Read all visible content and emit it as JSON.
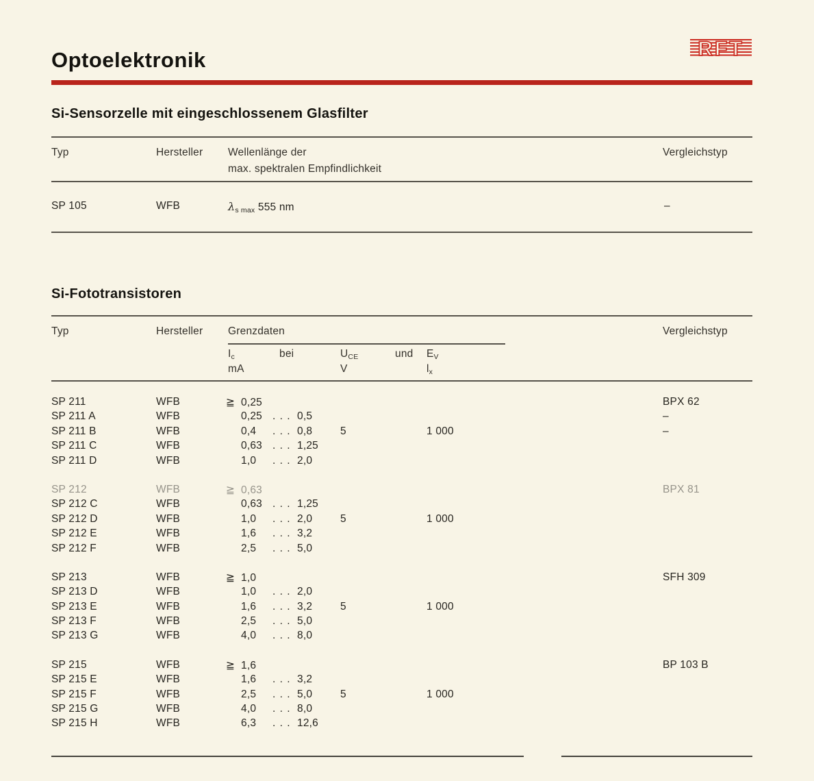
{
  "page": {
    "title": "Optoelektronik",
    "logo_text": "RFT",
    "accent_red": "#b9241b",
    "paper_color": "#f8f4e6",
    "ink_color": "#26241f"
  },
  "sensor_section": {
    "heading": "Si-Sensorzelle mit eingeschlossenem Glasfilter",
    "columns": {
      "typ": "Typ",
      "hersteller": "Hersteller",
      "wellenlaenge_line1": "Wellenlänge der",
      "wellenlaenge_line2": "max. spektralen Empfindlichkeit",
      "vergleichstyp": "Vergleichstyp"
    },
    "row": {
      "typ": "SP 105",
      "hersteller": "WFB",
      "lambda": "λ",
      "lambda_sub": "s max",
      "wert": "555 nm",
      "vergleichstyp": "–"
    }
  },
  "foto_section": {
    "heading": "Si-Fototransistoren",
    "columns": {
      "typ": "Typ",
      "hersteller": "Hersteller",
      "grenzdaten": "Grenzdaten",
      "vergleichstyp": "Vergleichstyp",
      "ic_main": "I",
      "ic_sub": "c",
      "ic_unit": "mA",
      "bei": "bei",
      "uce_main": "U",
      "uce_sub": "CE",
      "uce_unit": "V",
      "und": "und",
      "ev_main": "E",
      "ev_sub": "V",
      "ev_unit_main": "l",
      "ev_unit_sub": "x"
    },
    "dots": ". . .",
    "groups": [
      {
        "rows": [
          {
            "typ": "SP 211",
            "hersteller": "WFB",
            "ge": "≧",
            "min": "0,25",
            "max": "",
            "uce": "",
            "ev": "",
            "vergleichstyp": "BPX 62",
            "faded": false
          },
          {
            "typ": "SP 211 A",
            "hersteller": "WFB",
            "ge": "",
            "min": "0,25",
            "max": "0,5",
            "uce": "",
            "ev": "",
            "vergleichstyp": "–",
            "faded": false
          },
          {
            "typ": "SP 211 B",
            "hersteller": "WFB",
            "ge": "",
            "min": "0,4",
            "max": "0,8",
            "uce": "5",
            "ev": "1 000",
            "vergleichstyp": "–",
            "faded": false
          },
          {
            "typ": "SP 211 C",
            "hersteller": "WFB",
            "ge": "",
            "min": "0,63",
            "max": "1,25",
            "uce": "",
            "ev": "",
            "vergleichstyp": "",
            "faded": false
          },
          {
            "typ": "SP 211 D",
            "hersteller": "WFB",
            "ge": "",
            "min": "1,0",
            "max": "2,0",
            "uce": "",
            "ev": "",
            "vergleichstyp": "",
            "faded": false
          }
        ]
      },
      {
        "rows": [
          {
            "typ": "SP 212",
            "hersteller": "WFB",
            "ge": "≧",
            "min": "0,63",
            "max": "",
            "uce": "",
            "ev": "",
            "vergleichstyp": "BPX 81",
            "faded": true
          },
          {
            "typ": "SP 212 C",
            "hersteller": "WFB",
            "ge": "",
            "min": "0,63",
            "max": "1,25",
            "uce": "",
            "ev": "",
            "vergleichstyp": "",
            "faded": false
          },
          {
            "typ": "SP 212 D",
            "hersteller": "WFB",
            "ge": "",
            "min": "1,0",
            "max": "2,0",
            "uce": "5",
            "ev": "1 000",
            "vergleichstyp": "",
            "faded": false
          },
          {
            "typ": "SP 212 E",
            "hersteller": "WFB",
            "ge": "",
            "min": "1,6",
            "max": "3,2",
            "uce": "",
            "ev": "",
            "vergleichstyp": "",
            "faded": false
          },
          {
            "typ": "SP 212 F",
            "hersteller": "WFB",
            "ge": "",
            "min": "2,5",
            "max": "5,0",
            "uce": "",
            "ev": "",
            "vergleichstyp": "",
            "faded": false
          }
        ]
      },
      {
        "rows": [
          {
            "typ": "SP 213",
            "hersteller": "WFB",
            "ge": "≧",
            "min": "1,0",
            "max": "",
            "uce": "",
            "ev": "",
            "vergleichstyp": "SFH 309",
            "faded": false
          },
          {
            "typ": "SP 213 D",
            "hersteller": "WFB",
            "ge": "",
            "min": "1,0",
            "max": "2,0",
            "uce": "",
            "ev": "",
            "vergleichstyp": "",
            "faded": false
          },
          {
            "typ": "SP 213 E",
            "hersteller": "WFB",
            "ge": "",
            "min": "1,6",
            "max": "3,2",
            "uce": "5",
            "ev": "1 000",
            "vergleichstyp": "",
            "faded": false
          },
          {
            "typ": "SP 213 F",
            "hersteller": "WFB",
            "ge": "",
            "min": "2,5",
            "max": "5,0",
            "uce": "",
            "ev": "",
            "vergleichstyp": "",
            "faded": false
          },
          {
            "typ": "SP 213 G",
            "hersteller": "WFB",
            "ge": "",
            "min": "4,0",
            "max": "8,0",
            "uce": "",
            "ev": "",
            "vergleichstyp": "",
            "faded": false
          }
        ]
      },
      {
        "rows": [
          {
            "typ": "SP 215",
            "hersteller": "WFB",
            "ge": "≧",
            "min": "1,6",
            "max": "",
            "uce": "",
            "ev": "",
            "vergleichstyp": "BP 103 B",
            "faded": false
          },
          {
            "typ": "SP 215 E",
            "hersteller": "WFB",
            "ge": "",
            "min": "1,6",
            "max": "3,2",
            "uce": "",
            "ev": "",
            "vergleichstyp": "",
            "faded": false
          },
          {
            "typ": "SP 215 F",
            "hersteller": "WFB",
            "ge": "",
            "min": "2,5",
            "max": "5,0",
            "uce": "5",
            "ev": "1 000",
            "vergleichstyp": "",
            "faded": false
          },
          {
            "typ": "SP 215 G",
            "hersteller": "WFB",
            "ge": "",
            "min": "4,0",
            "max": "8,0",
            "uce": "",
            "ev": "",
            "vergleichstyp": "",
            "faded": false
          },
          {
            "typ": "SP 215 H",
            "hersteller": "WFB",
            "ge": "",
            "min": "6,3",
            "max": "12,6",
            "uce": "",
            "ev": "",
            "vergleichstyp": "",
            "faded": false
          }
        ]
      }
    ]
  }
}
